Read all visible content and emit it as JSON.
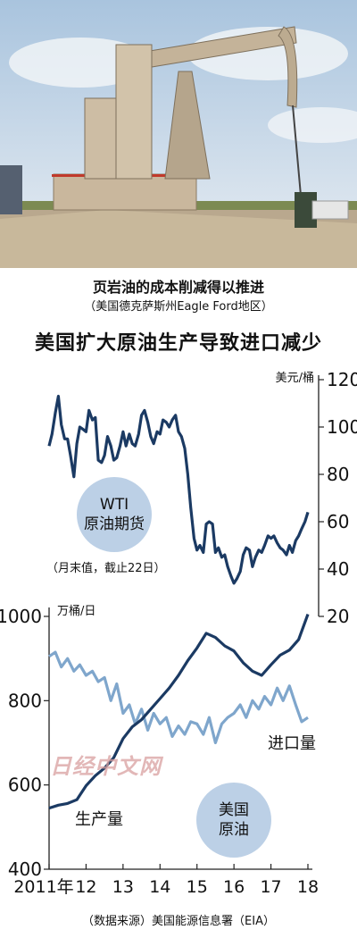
{
  "photo": {
    "description_icon": "oil-pumpjack-photo"
  },
  "caption": {
    "main": "页岩油的成本削减得以推进",
    "sub": "（美国德克萨斯州Eagle Ford地区）"
  },
  "headline": "美国扩大原油生产导致进口减少",
  "source": "（数据来源）美国能源信息署（EIA）",
  "watermark": "日经中文网",
  "colors": {
    "wti": "#1b3a63",
    "production": "#1b3a63",
    "imports": "#7fa6cc",
    "bubble": "#bcd0e6",
    "axis": "#222222"
  },
  "chart_data": [
    {
      "type": "line",
      "unit_label": "美元/桶",
      "bubble_label": [
        "WTI",
        "原油期货"
      ],
      "note": "（月末值，截止22日）",
      "y_axis": "right",
      "ylim": [
        20,
        120
      ],
      "yticks": [
        "120",
        "100",
        "80",
        "60",
        "40",
        "20"
      ],
      "series": [
        {
          "x": [
            2011.0,
            2011.08,
            2011.17,
            2011.25,
            2011.33,
            2011.42,
            2011.5,
            2011.58,
            2011.67,
            2011.75,
            2011.83,
            2011.92,
            2012.0,
            2012.08,
            2012.17,
            2012.25,
            2012.33,
            2012.42,
            2012.5,
            2012.58,
            2012.67,
            2012.75,
            2012.83,
            2012.92,
            2013.0,
            2013.08,
            2013.17,
            2013.25,
            2013.33,
            2013.42,
            2013.5,
            2013.58,
            2013.67,
            2013.75,
            2013.83,
            2013.92,
            2014.0,
            2014.08,
            2014.17,
            2014.25,
            2014.33,
            2014.42,
            2014.5,
            2014.58,
            2014.67,
            2014.75,
            2014.83,
            2014.92,
            2015.0,
            2015.08,
            2015.17,
            2015.25,
            2015.33,
            2015.42,
            2015.5,
            2015.58,
            2015.67,
            2015.75,
            2015.83,
            2015.92,
            2016.0,
            2016.08,
            2016.17,
            2016.25,
            2016.33,
            2016.42,
            2016.5,
            2016.58,
            2016.67,
            2016.75,
            2016.83,
            2016.92,
            2017.0,
            2017.08,
            2017.17,
            2017.25,
            2017.33,
            2017.42,
            2017.5,
            2017.58,
            2017.67,
            2017.75,
            2017.83,
            2017.92,
            2018.0
          ],
          "values": [
            92,
            97,
            106,
            113,
            101,
            95,
            95,
            88,
            79,
            93,
            100,
            99,
            98,
            107,
            103,
            104,
            86,
            85,
            88,
            96,
            92,
            86,
            87,
            92,
            98,
            92,
            97,
            93,
            92,
            97,
            105,
            107,
            102,
            96,
            93,
            98,
            97,
            103,
            102,
            100,
            103,
            105,
            98,
            96,
            91,
            80,
            66,
            53,
            48,
            50,
            47,
            59,
            60,
            59,
            47,
            49,
            45,
            46,
            41,
            37,
            34,
            36,
            39,
            46,
            49,
            48,
            41,
            45,
            48,
            47,
            50,
            54,
            53,
            54,
            51,
            49,
            48,
            46,
            50,
            47,
            52,
            54,
            57,
            60,
            64
          ]
        }
      ]
    },
    {
      "type": "line",
      "unit_label": "万桶/日",
      "bubble_label": [
        "美国",
        "原油"
      ],
      "y_axis": "left",
      "ylim": [
        400,
        1000
      ],
      "yticks": [
        "1000",
        "800",
        "600",
        "400"
      ],
      "x_ticks": [
        "2011年",
        "12",
        "13",
        "14",
        "15",
        "16",
        "17",
        "18"
      ],
      "series": [
        {
          "name": "生产量",
          "x": [
            2011.0,
            2011.25,
            2011.5,
            2011.75,
            2012.0,
            2012.25,
            2012.5,
            2012.75,
            2013.0,
            2013.25,
            2013.5,
            2013.75,
            2014.0,
            2014.25,
            2014.5,
            2014.75,
            2015.0,
            2015.25,
            2015.5,
            2015.75,
            2016.0,
            2016.25,
            2016.5,
            2016.75,
            2017.0,
            2017.25,
            2017.5,
            2017.75,
            2018.0
          ],
          "values": [
            545,
            552,
            556,
            565,
            598,
            622,
            640,
            665,
            710,
            738,
            755,
            780,
            805,
            830,
            860,
            895,
            925,
            960,
            950,
            930,
            918,
            890,
            870,
            860,
            885,
            908,
            920,
            945,
            1005
          ]
        },
        {
          "name": "进口量",
          "x": [
            2011.0,
            2011.17,
            2011.33,
            2011.5,
            2011.67,
            2011.83,
            2012.0,
            2012.17,
            2012.33,
            2012.5,
            2012.67,
            2012.83,
            2013.0,
            2013.17,
            2013.33,
            2013.5,
            2013.67,
            2013.83,
            2014.0,
            2014.17,
            2014.33,
            2014.5,
            2014.67,
            2014.83,
            2015.0,
            2015.17,
            2015.33,
            2015.5,
            2015.67,
            2015.83,
            2016.0,
            2016.17,
            2016.33,
            2016.5,
            2016.67,
            2016.83,
            2017.0,
            2017.17,
            2017.33,
            2017.5,
            2017.67,
            2017.83,
            2018.0
          ],
          "values": [
            905,
            915,
            880,
            900,
            870,
            885,
            860,
            870,
            845,
            855,
            800,
            840,
            770,
            790,
            745,
            780,
            730,
            770,
            745,
            760,
            715,
            740,
            720,
            750,
            745,
            720,
            760,
            700,
            745,
            760,
            770,
            790,
            760,
            800,
            780,
            810,
            790,
            830,
            800,
            835,
            790,
            750,
            760
          ]
        }
      ]
    }
  ]
}
